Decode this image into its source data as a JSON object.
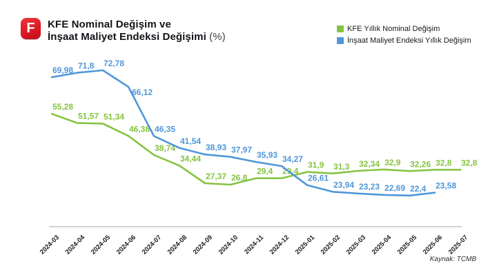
{
  "header": {
    "logo_letter": "F",
    "title_line1": "KFE Nominal Değişim ve",
    "title_line2": "İnşaat Maliyet Endeksi Değişimi",
    "title_suffix": "(%)"
  },
  "legend": [
    {
      "label": "KFE Yıllık Nominal Değişim",
      "color": "#85c441"
    },
    {
      "label": "İnşaat Maliyet Endeksi Yıllık Değişim",
      "color": "#4f97d9"
    }
  ],
  "source": "Kaynak: TCMB",
  "chart_data": {
    "type": "line",
    "title": "KFE Nominal Değişim ve İnşaat Maliyet Endeksi Değişimi (%)",
    "categories": [
      "2024-03",
      "2024-04",
      "2024-05",
      "2024-06",
      "2024-07",
      "2024-08",
      "2024-09",
      "2024-10",
      "2024-11",
      "2024-12",
      "2025-01",
      "2025-02",
      "2025-03",
      "2025-04",
      "2025-05",
      "2025-06",
      "2025-07"
    ],
    "series": [
      {
        "name": "KFE Yıllık Nominal Değişim",
        "color": "#85c441",
        "values": [
          55.28,
          51.57,
          51.34,
          46.38,
          38.74,
          34.44,
          27.37,
          26.8,
          29.4,
          29.4,
          31.9,
          31.3,
          32.34,
          32.9,
          32.26,
          32.8,
          32.8
        ],
        "labels": [
          "55,28",
          "51,57",
          "51,34",
          "46,38",
          "38,74",
          "34,44",
          "27,37",
          "26,8",
          "29,4",
          "29,4",
          "31,9",
          "31,3",
          "32,34",
          "32,9",
          "32,26",
          "32,8",
          "32,8"
        ]
      },
      {
        "name": "İnşaat Maliyet Endeksi Yıllık Değişim",
        "color": "#4f97d9",
        "values": [
          69.98,
          71.8,
          72.78,
          66.12,
          46.35,
          41.54,
          38.93,
          37.97,
          35.93,
          34.27,
          26.61,
          23.94,
          23.23,
          22.69,
          22.4,
          23.58,
          null
        ],
        "labels": [
          "69,98",
          "71,8",
          "72,78",
          "66,12",
          "46,35",
          "41,54",
          "38,93",
          "37,97",
          "35,93",
          "34,27",
          "26,61",
          "23,94",
          "23,23",
          "22,69",
          "22,4",
          "23,58",
          null
        ]
      }
    ],
    "ylim": [
      20,
      75
    ],
    "grid": false,
    "legend_position": "top-right",
    "xlabel": "",
    "ylabel": ""
  }
}
